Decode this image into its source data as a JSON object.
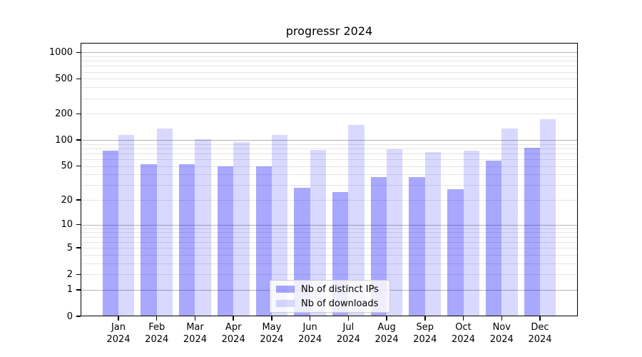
{
  "chart_data": {
    "type": "bar",
    "title": "progressr 2024",
    "categories": [
      "Jan 2024",
      "Feb 2024",
      "Mar 2024",
      "Apr 2024",
      "May 2024",
      "Jun 2024",
      "Jul 2024",
      "Aug 2024",
      "Sep 2024",
      "Oct 2024",
      "Nov 2024",
      "Dec 2024"
    ],
    "series": [
      {
        "name": "Nb of distinct IPs",
        "color": "#0000ff",
        "alpha": 0.34,
        "values": [
          76,
          53,
          53,
          50,
          50,
          28,
          25,
          37,
          37,
          27,
          58,
          82
        ]
      },
      {
        "name": "Nb of downloads",
        "color": "#0000ff",
        "alpha": 0.15,
        "values": [
          115,
          136,
          103,
          94,
          114,
          77,
          148,
          78,
          72,
          76,
          135,
          173
        ]
      }
    ],
    "xlabel": "",
    "ylabel": "",
    "yscale": "log1p",
    "ylim": [
      0,
      1260
    ],
    "yticks": [
      0,
      1,
      2,
      5,
      10,
      20,
      50,
      100,
      200,
      500,
      1000
    ],
    "grid": {
      "on": true,
      "major_color": "#b3b3b3",
      "minor_color": "#e5e5e5"
    },
    "legend_position": "lower center"
  }
}
